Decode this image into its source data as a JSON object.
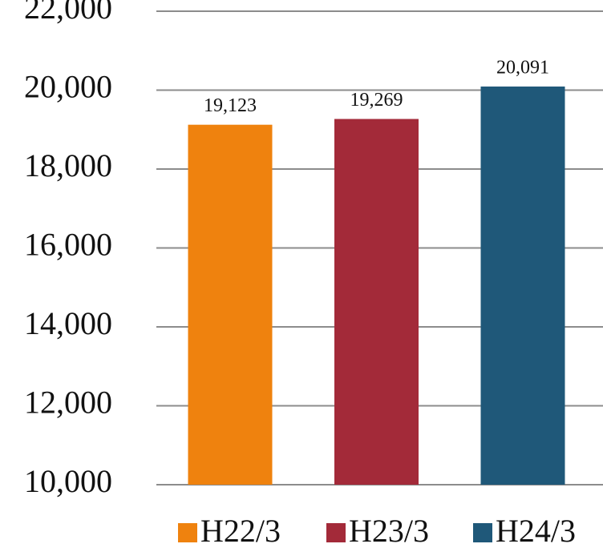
{
  "chart_data": {
    "type": "bar",
    "categories": [
      null
    ],
    "series": [
      {
        "name": "H22/3",
        "color": "#ef820e",
        "values": [
          19123
        ],
        "value_labels": [
          "19,123"
        ]
      },
      {
        "name": "H23/3",
        "color": "#a32a39",
        "values": [
          19269
        ],
        "value_labels": [
          "19,269"
        ]
      },
      {
        "name": "H24/3",
        "color": "#1f5879",
        "values": [
          20091
        ],
        "value_labels": [
          "20,091"
        ]
      }
    ],
    "ylim": [
      10000,
      22000
    ],
    "yticks": [
      {
        "value": 10000,
        "label": "10,000"
      },
      {
        "value": 12000,
        "label": "12,000"
      },
      {
        "value": 14000,
        "label": "14,000"
      },
      {
        "value": 16000,
        "label": "16,000"
      },
      {
        "value": 18000,
        "label": "18,000"
      },
      {
        "value": 20000,
        "label": "20,000"
      },
      {
        "value": 22000,
        "label": "22,000"
      }
    ],
    "grid": true,
    "legend": "bottom"
  }
}
